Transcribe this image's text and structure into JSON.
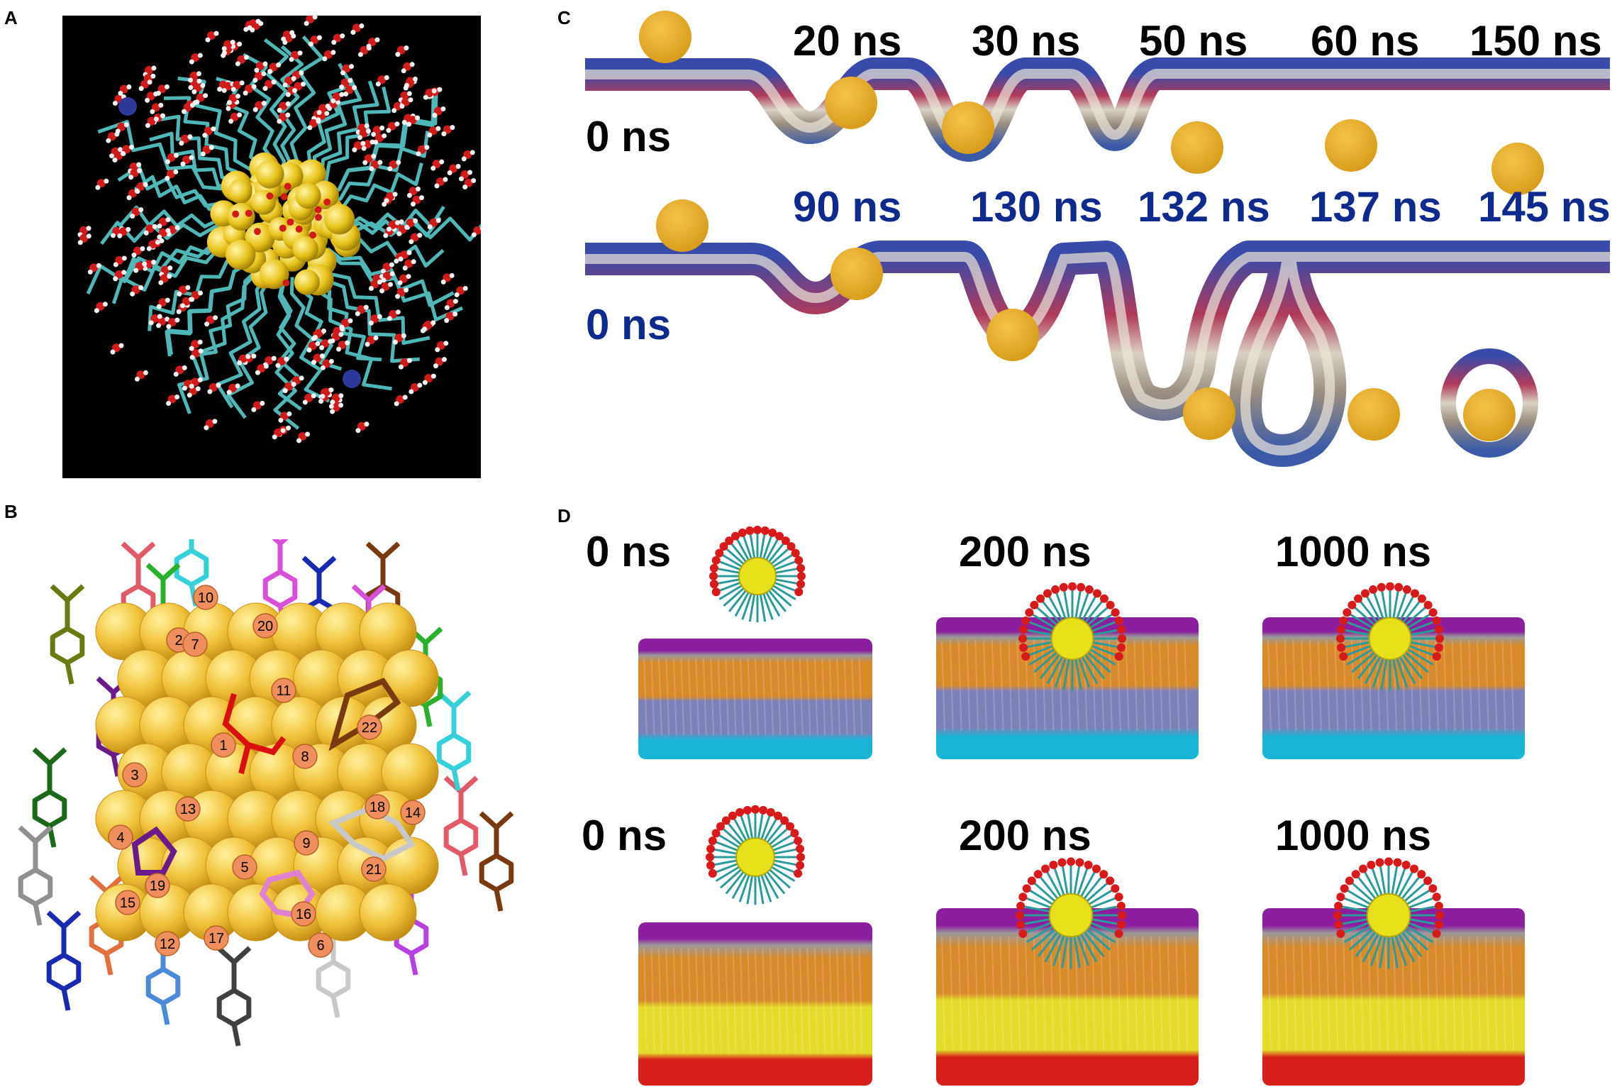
{
  "panels": {
    "a": {
      "label": "A"
    },
    "b": {
      "label": "B",
      "atom_numbers": [
        "1",
        "2",
        "3",
        "4",
        "5",
        "6",
        "7",
        "8",
        "9",
        "10",
        "11",
        "12",
        "13",
        "14",
        "15",
        "16",
        "17",
        "18",
        "19",
        "20",
        "21",
        "22"
      ]
    },
    "c": {
      "label": "C",
      "row1": {
        "start": "0 ns",
        "times": [
          "20 ns",
          "30 ns",
          "50 ns",
          "60 ns",
          "150 ns"
        ]
      },
      "row2": {
        "start": "0 ns",
        "times": [
          "90 ns",
          "130 ns",
          "132 ns",
          "137 ns",
          "145 ns"
        ]
      }
    },
    "d": {
      "label": "D",
      "row1": {
        "times": [
          "0 ns",
          "200 ns",
          "1000 ns"
        ]
      },
      "row2": {
        "times": [
          "0 ns",
          "200 ns",
          "1000 ns"
        ]
      }
    }
  },
  "colors": {
    "gold": "#e8ac2a",
    "background_a": "#000000",
    "membrane": "#5b6aa8",
    "headgroup": "#8c1fa0",
    "tail": "#d98a2a",
    "lower_leaflet": "#7c80b8",
    "cyan": "#1ab5d6",
    "yellow": "#e3dc2a",
    "red": "#d8201a",
    "label_blue": "#0e2a8c"
  }
}
